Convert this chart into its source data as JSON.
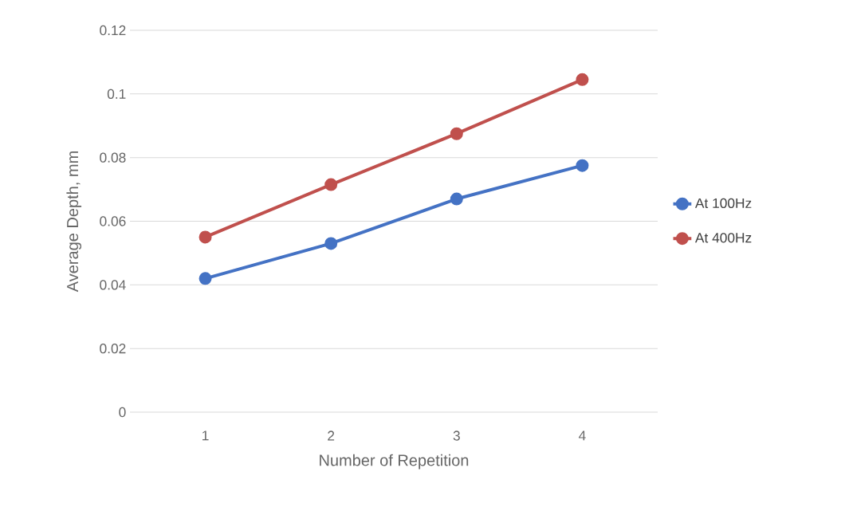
{
  "chart_data": {
    "type": "line",
    "xlabel": "Number of Repetition",
    "ylabel": "Average Depth, mm",
    "categories": [
      "1",
      "2",
      "3",
      "4"
    ],
    "series": [
      {
        "name": "At 100Hz",
        "color": "#4472c4",
        "values": [
          0.042,
          0.053,
          0.067,
          0.0775
        ]
      },
      {
        "name": "At 400Hz",
        "color": "#c0504d",
        "values": [
          0.055,
          0.0715,
          0.0875,
          0.1045
        ]
      }
    ],
    "ylim": [
      0,
      0.12
    ],
    "yticks": [
      0,
      0.02,
      0.04,
      0.06,
      0.08,
      0.1,
      0.12
    ],
    "grid": "y",
    "legend": "right",
    "marker": "circle",
    "line_style": "solid"
  }
}
